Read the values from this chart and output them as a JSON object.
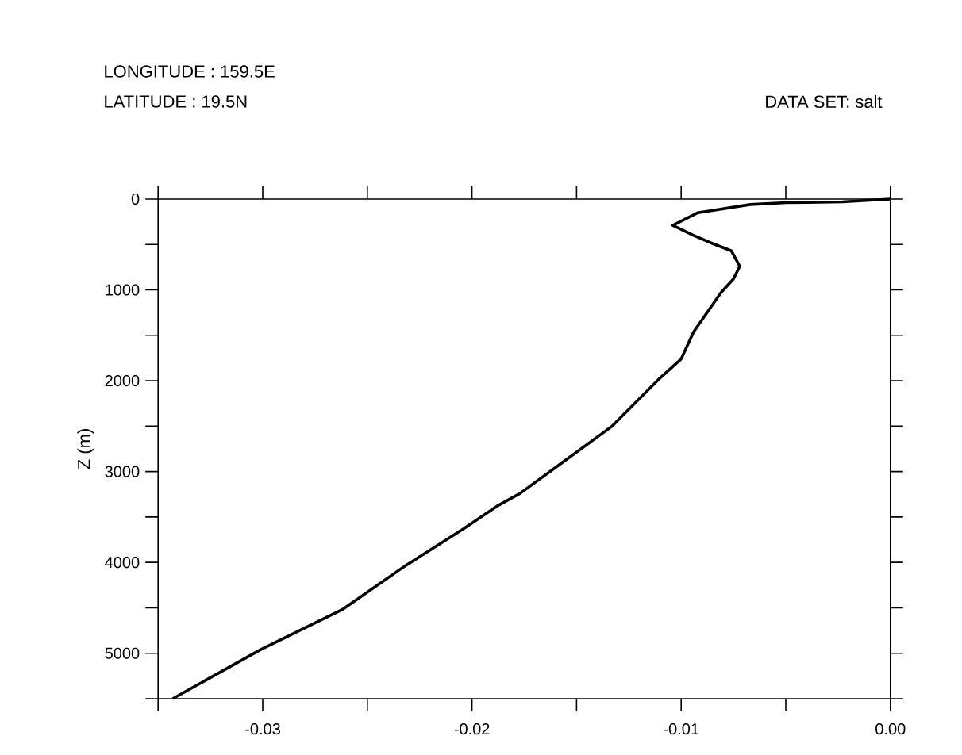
{
  "chart_data": {
    "type": "line",
    "ylabel": "Z (m)",
    "annotations": [
      "LONGITUDE : 159.5E",
      "LATITUDE : 19.5N",
      "DATA SET: salt"
    ],
    "xlim": [
      -0.035,
      0.0
    ],
    "ylim": [
      5500,
      0
    ],
    "xticks": [
      {
        "value": -0.035,
        "label": null
      },
      -0.03,
      {
        "value": -0.025,
        "label": null
      },
      -0.02,
      {
        "value": -0.015,
        "label": null
      },
      -0.01,
      {
        "value": -0.005,
        "label": null
      },
      {
        "value": 0.0,
        "label": "0.00"
      }
    ],
    "yticks": [
      0,
      {
        "value": 500,
        "label": null
      },
      1000,
      {
        "value": 1500,
        "label": null
      },
      2000,
      {
        "value": 2500,
        "label": null
      },
      3000,
      {
        "value": 3500,
        "label": null
      },
      4000,
      {
        "value": 4500,
        "label": null
      },
      5000,
      {
        "value": 5500,
        "label": null
      }
    ],
    "marker": "none",
    "line_style": "solid",
    "series": [
      {
        "color": "#000000",
        "x": [
          0.0,
          -0.0023,
          -0.005,
          -0.0067,
          -0.0092,
          -0.0104,
          -0.0094,
          -0.0086,
          -0.0076,
          -0.0072,
          -0.0075,
          -0.0081,
          -0.0094,
          -0.01,
          -0.0111,
          -0.0133,
          -0.0155,
          -0.0177,
          -0.0188,
          -0.0204,
          -0.0232,
          -0.0262,
          -0.0301,
          -0.0343
        ],
        "values": [
          0,
          30,
          40,
          60,
          150,
          290,
          400,
          480,
          570,
          740,
          880,
          1030,
          1460,
          1760,
          1990,
          2500,
          2870,
          3240,
          3380,
          3630,
          4040,
          4520,
          4960,
          5500
        ]
      }
    ]
  }
}
